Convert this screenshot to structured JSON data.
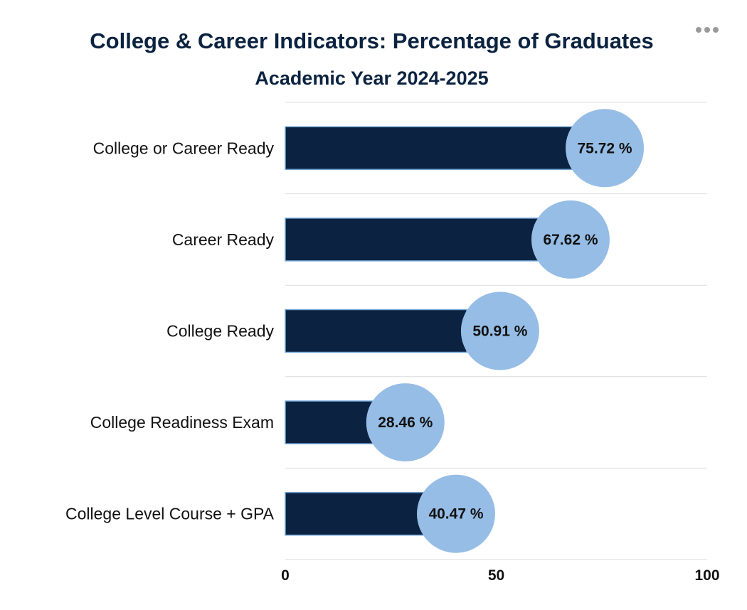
{
  "chart_data": {
    "type": "bar",
    "orientation": "horizontal",
    "title": "College & Career Indicators: Percentage of Graduates",
    "subtitle": "Academic Year 2024-2025",
    "categories": [
      "College or Career Ready",
      "Career Ready",
      "College Ready",
      "College Readiness Exam",
      "College Level Course + GPA"
    ],
    "series": [
      {
        "name": "Bar",
        "values": [
          68,
          60,
          43,
          21,
          33
        ],
        "color": "#0b2340",
        "border_color": "#6fa3d3"
      },
      {
        "name": "Percentage of Graduates",
        "values": [
          75.72,
          67.62,
          50.91,
          28.46,
          40.47
        ],
        "labels": [
          "75.72 %",
          "67.62 %",
          "50.91 %",
          "28.46 %",
          "40.47 %"
        ],
        "marker": "circle",
        "color": "#96bde6"
      }
    ],
    "xlim": [
      0,
      100
    ],
    "xticks": [
      "0",
      "50",
      "100"
    ],
    "grid": true,
    "legend": "none",
    "xlabel": "",
    "ylabel": ""
  },
  "menu": {
    "icon": "more-horizontal-icon"
  },
  "colors": {
    "title": "#0b2340",
    "grid": "#dcdcdc"
  }
}
